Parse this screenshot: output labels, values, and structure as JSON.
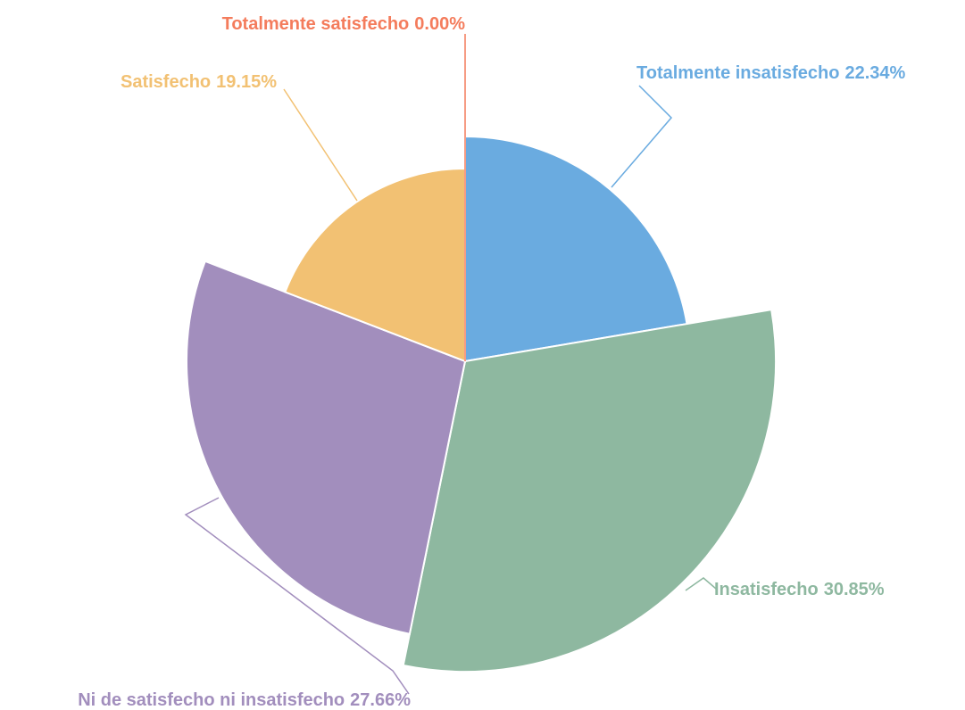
{
  "chart_data": {
    "type": "rose",
    "categories": [
      "Totalmente insatisfecho",
      "Insatisfecho",
      "Ni de satisfecho ni insatisfecho",
      "Satisfecho",
      "Totalmente satisfecho"
    ],
    "values": [
      22.34,
      30.85,
      27.66,
      19.15,
      0
    ],
    "value_labels": [
      "22.34%",
      "30.85%",
      "27.66%",
      "19.15%",
      "0.00%"
    ],
    "colors": [
      "#6aabe0",
      "#8eb8a0",
      "#a28ebd",
      "#f2c173",
      "#f47c5c"
    ]
  }
}
